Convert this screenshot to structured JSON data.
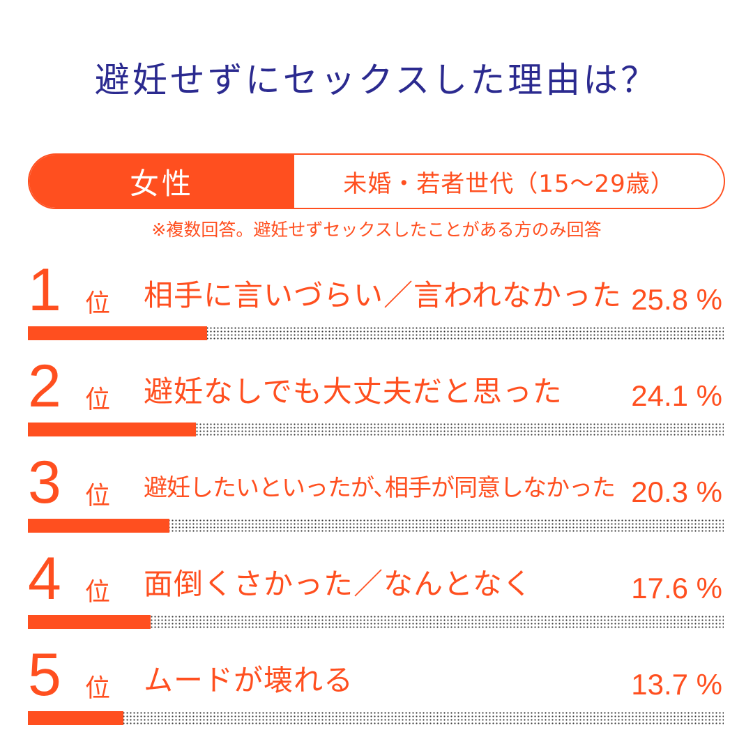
{
  "title": "避妊せずにセックスした理由は？",
  "segment": {
    "gender": "女性",
    "group": "未婚・若者世代（15〜29歳）"
  },
  "note": "※複数回答。避妊せずセックスしたことがある方のみ回答",
  "rank_suffix": "位",
  "colors": {
    "accent": "#ff4f1f",
    "title": "#2b2a8f",
    "dots": "#333333"
  },
  "chart_data": {
    "type": "bar",
    "orientation": "horizontal",
    "title": "避妊せずにセックスした理由は？",
    "ranks": [
      "1",
      "2",
      "3",
      "4",
      "5"
    ],
    "categories": [
      "相手に言いづらい／言われなかった",
      "避妊なしでも大丈夫だと思った",
      "避妊したいといったが､相手が同意しなかった",
      "面倒くさかった／なんとなく",
      "ムードが壊れる"
    ],
    "values": [
      25.8,
      24.1,
      20.3,
      17.6,
      13.7
    ],
    "value_labels": [
      "25.8 %",
      "24.1 %",
      "20.3 %",
      "17.6 %",
      "13.7 %"
    ],
    "unit": "%",
    "xlim": [
      0,
      100
    ],
    "grid": false,
    "legend": "none"
  }
}
